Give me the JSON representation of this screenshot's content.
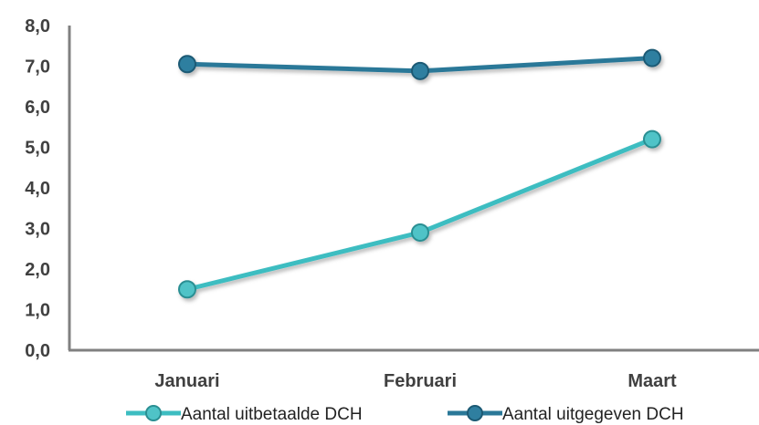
{
  "chart_data": {
    "type": "line",
    "categories": [
      "Januari",
      "Februari",
      "Maart"
    ],
    "series": [
      {
        "name": "Aantal uitbetaalde DCH",
        "values": [
          1.5,
          2.9,
          5.2
        ],
        "color": "#3dbdc1",
        "marker_fill": "#4fc3c7",
        "marker_stroke": "#2a8f93"
      },
      {
        "name": "Aantal uitgegeven DCH",
        "values": [
          7.05,
          6.88,
          7.2
        ],
        "color": "#2a7898",
        "marker_fill": "#2f7fa0",
        "marker_stroke": "#1c5a74"
      }
    ],
    "y_ticks": [
      "0,0",
      "1,0",
      "2,0",
      "3,0",
      "4,0",
      "5,0",
      "6,0",
      "7,0",
      "8,0"
    ],
    "ylim": [
      0,
      8
    ],
    "grid": false,
    "legend_position": "bottom",
    "title": "",
    "xlabel": "",
    "ylabel": ""
  }
}
